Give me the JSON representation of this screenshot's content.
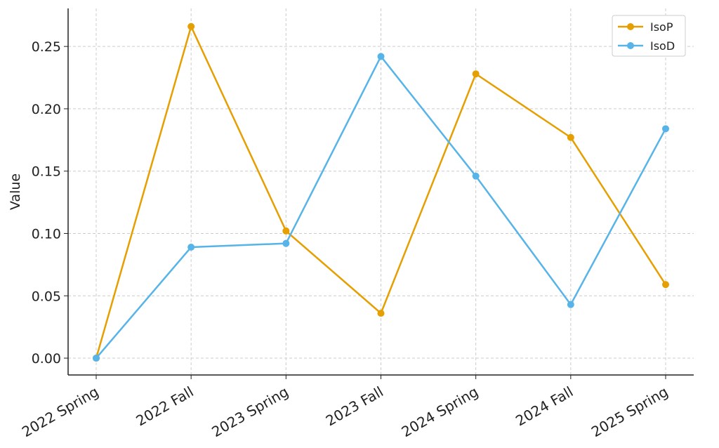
{
  "chart_data": {
    "type": "line",
    "y_label": "Value",
    "categories": [
      "2022 Spring",
      "2022 Fall",
      "2023 Spring",
      "2023 Fall",
      "2024 Spring",
      "2024 Fall",
      "2025 Spring"
    ],
    "series": [
      {
        "name": "IsoP",
        "color": "#e69f00",
        "values": [
          0,
          0.266,
          0.102,
          0.036,
          0.228,
          0.177,
          0.059
        ]
      },
      {
        "name": "IsoD",
        "color": "#56b4e9",
        "values": [
          0,
          0.089,
          0.092,
          0.242,
          0.146,
          0.043,
          0.184
        ]
      }
    ],
    "ylim": [
      -0.0135,
      0.2805
    ],
    "yticks": [
      {
        "value": 0,
        "label": "0.00"
      },
      {
        "value": 0.05,
        "label": "0.05"
      },
      {
        "value": 0.1,
        "label": "0.10"
      },
      {
        "value": 0.15,
        "label": "0.15"
      },
      {
        "value": 0.2,
        "label": "0.20"
      },
      {
        "value": 0.25,
        "label": "0.25"
      }
    ],
    "grid": true,
    "legend": "upper-right"
  }
}
